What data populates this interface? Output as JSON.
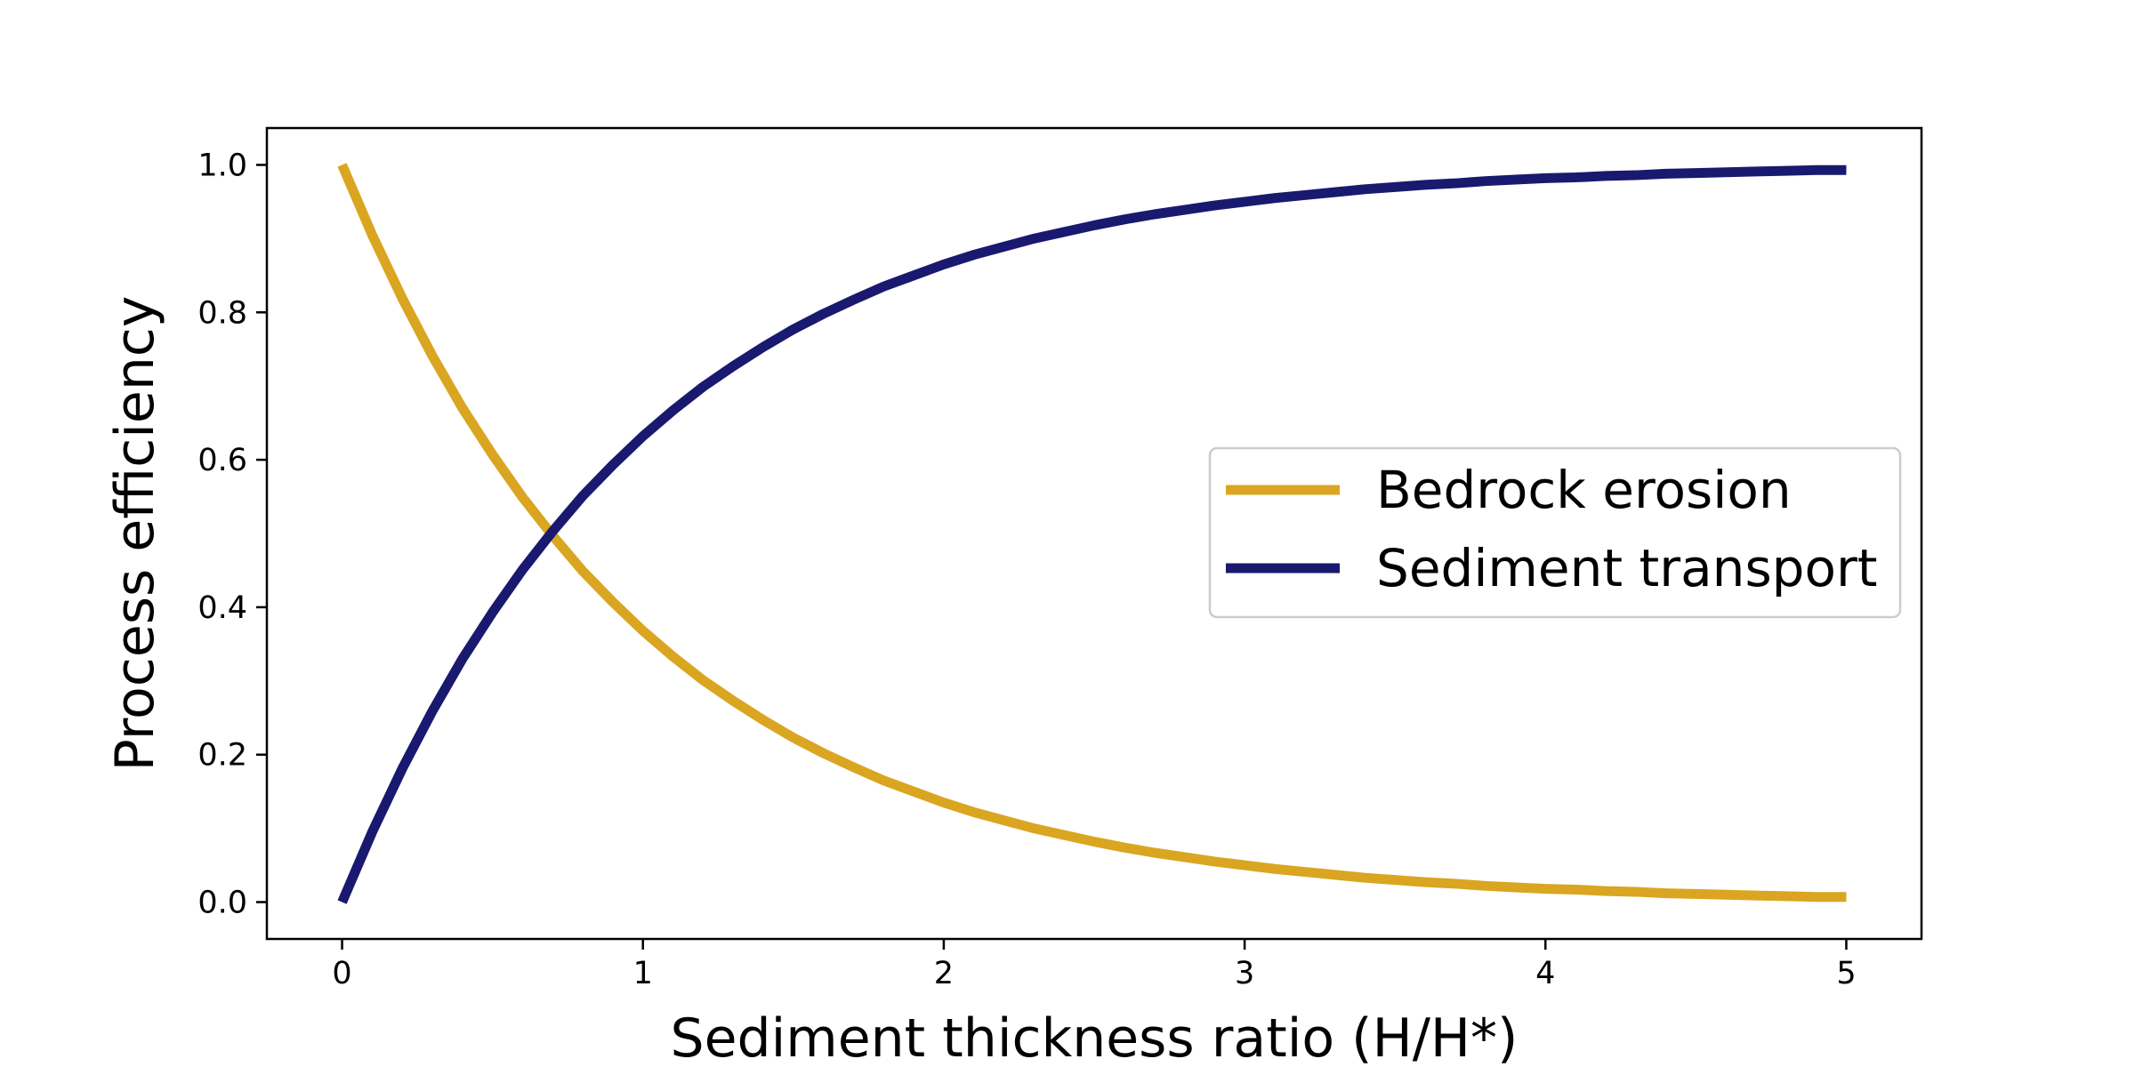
{
  "chart_data": {
    "type": "line",
    "title": "",
    "xlabel": "Sediment thickness ratio (H/H*)",
    "ylabel": "Process efficiency",
    "xlim": [
      -0.25,
      5.25
    ],
    "ylim": [
      -0.05,
      1.05
    ],
    "xticks": [
      0,
      1,
      2,
      3,
      4,
      5
    ],
    "xtick_labels": [
      "0",
      "1",
      "2",
      "3",
      "4",
      "5"
    ],
    "yticks": [
      0.0,
      0.2,
      0.4,
      0.6,
      0.8,
      1.0
    ],
    "ytick_labels": [
      "0.0",
      "0.2",
      "0.4",
      "0.6",
      "0.8",
      "1.0"
    ],
    "grid": false,
    "legend_position": "center-right",
    "x": [
      0,
      0.1,
      0.2,
      0.3,
      0.4,
      0.5,
      0.6,
      0.7,
      0.8,
      0.9,
      1.0,
      1.1,
      1.2,
      1.3,
      1.4,
      1.5,
      1.6,
      1.7,
      1.8,
      1.9,
      2.0,
      2.1,
      2.2,
      2.3,
      2.4,
      2.5,
      2.6,
      2.7,
      2.8,
      2.9,
      3.0,
      3.1,
      3.2,
      3.3,
      3.4,
      3.5,
      3.6,
      3.7,
      3.8,
      3.9,
      4.0,
      4.1,
      4.2,
      4.3,
      4.4,
      4.5,
      4.6,
      4.7,
      4.8,
      4.9,
      5.0
    ],
    "series": [
      {
        "name": "Bedrock erosion",
        "color": "#DAA520",
        "values": [
          1.0,
          0.905,
          0.819,
          0.741,
          0.67,
          0.607,
          0.549,
          0.497,
          0.449,
          0.407,
          0.368,
          0.333,
          0.301,
          0.273,
          0.247,
          0.223,
          0.202,
          0.183,
          0.165,
          0.15,
          0.135,
          0.122,
          0.111,
          0.1,
          0.091,
          0.082,
          0.074,
          0.067,
          0.061,
          0.055,
          0.05,
          0.045,
          0.041,
          0.037,
          0.033,
          0.03,
          0.027,
          0.025,
          0.022,
          0.02,
          0.018,
          0.017,
          0.015,
          0.014,
          0.012,
          0.011,
          0.01,
          0.009,
          0.008,
          0.007,
          0.007
        ]
      },
      {
        "name": "Sediment transport",
        "color": "#191970",
        "values": [
          0.0,
          0.095,
          0.181,
          0.259,
          0.33,
          0.393,
          0.451,
          0.503,
          0.551,
          0.593,
          0.632,
          0.667,
          0.699,
          0.727,
          0.753,
          0.777,
          0.798,
          0.817,
          0.835,
          0.85,
          0.865,
          0.878,
          0.889,
          0.9,
          0.909,
          0.918,
          0.926,
          0.933,
          0.939,
          0.945,
          0.95,
          0.955,
          0.959,
          0.963,
          0.967,
          0.97,
          0.973,
          0.975,
          0.978,
          0.98,
          0.982,
          0.983,
          0.985,
          0.986,
          0.988,
          0.989,
          0.99,
          0.991,
          0.992,
          0.993,
          0.993
        ]
      }
    ]
  }
}
